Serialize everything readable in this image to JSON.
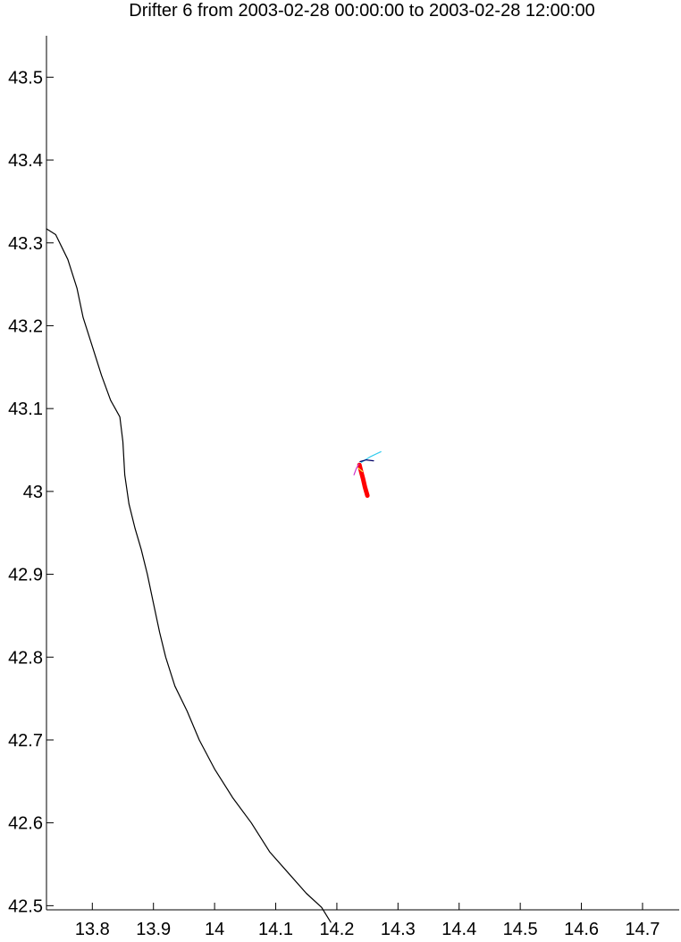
{
  "chart_data": {
    "type": "line",
    "title": "Drifter 6 from 2003-02-28 00:00:00 to 2003-02-28 12:00:00",
    "xlabel": "",
    "ylabel": "",
    "xlim": [
      13.725,
      14.76
    ],
    "ylim": [
      42.495,
      43.55
    ],
    "xticks": [
      13.8,
      13.9,
      14.0,
      14.1,
      14.2,
      14.3,
      14.4,
      14.5,
      14.6,
      14.7
    ],
    "xtick_labels": [
      "13.8",
      "13.9",
      "14",
      "14.1",
      "14.2",
      "14.3",
      "14.4",
      "14.5",
      "14.6",
      "14.7"
    ],
    "yticks": [
      42.5,
      42.6,
      42.7,
      42.8,
      42.9,
      43.0,
      43.1,
      43.2,
      43.3,
      43.4,
      43.5
    ],
    "ytick_labels": [
      "42.5",
      "42.6",
      "42.7",
      "42.8",
      "42.9",
      "43",
      "43.1",
      "43.2",
      "43.3",
      "43.4",
      "43.5"
    ],
    "grid": false,
    "colors": {
      "coastline": "#000000",
      "drifter": "#ff0000",
      "purple": "#cc33cc",
      "cyan": "#33ccee",
      "yellow": "#eedd44",
      "navy": "#000066"
    },
    "series": [
      {
        "color": "#000000",
        "x": [
          13.725,
          13.74,
          13.76,
          13.775,
          13.785,
          13.8,
          13.815,
          13.83,
          13.845,
          13.85,
          13.853,
          13.86,
          13.87,
          13.88,
          13.89,
          13.9,
          13.91,
          13.92,
          13.935,
          13.955,
          13.975,
          14.0,
          14.03,
          14.06,
          14.09,
          14.12,
          14.15,
          14.175,
          14.19
        ],
        "y": [
          43.317,
          43.31,
          43.28,
          43.245,
          43.21,
          43.175,
          43.14,
          43.11,
          43.09,
          43.06,
          43.02,
          42.985,
          42.955,
          42.93,
          42.9,
          42.865,
          42.83,
          42.8,
          42.765,
          42.735,
          42.7,
          42.665,
          42.63,
          42.6,
          42.565,
          42.54,
          42.515,
          42.498,
          42.48
        ]
      },
      {
        "color": "#ff0000",
        "x": [
          14.237,
          14.24,
          14.243,
          14.246,
          14.25
        ],
        "y": [
          43.032,
          43.023,
          43.015,
          43.005,
          42.995
        ]
      },
      {
        "color": "#cc33cc",
        "x": [
          14.228,
          14.232,
          14.236
        ],
        "y": [
          43.02,
          43.028,
          43.033
        ]
      },
      {
        "color": "#33ccee",
        "x": [
          14.24,
          14.255,
          14.272
        ],
        "y": [
          43.035,
          43.042,
          43.048
        ]
      },
      {
        "color": "#eedd44",
        "x": [
          14.235,
          14.242
        ],
        "y": [
          43.028,
          43.024
        ]
      },
      {
        "color": "#000066",
        "x": [
          14.238,
          14.248,
          14.26
        ],
        "y": [
          43.036,
          43.038,
          43.037
        ]
      }
    ]
  }
}
